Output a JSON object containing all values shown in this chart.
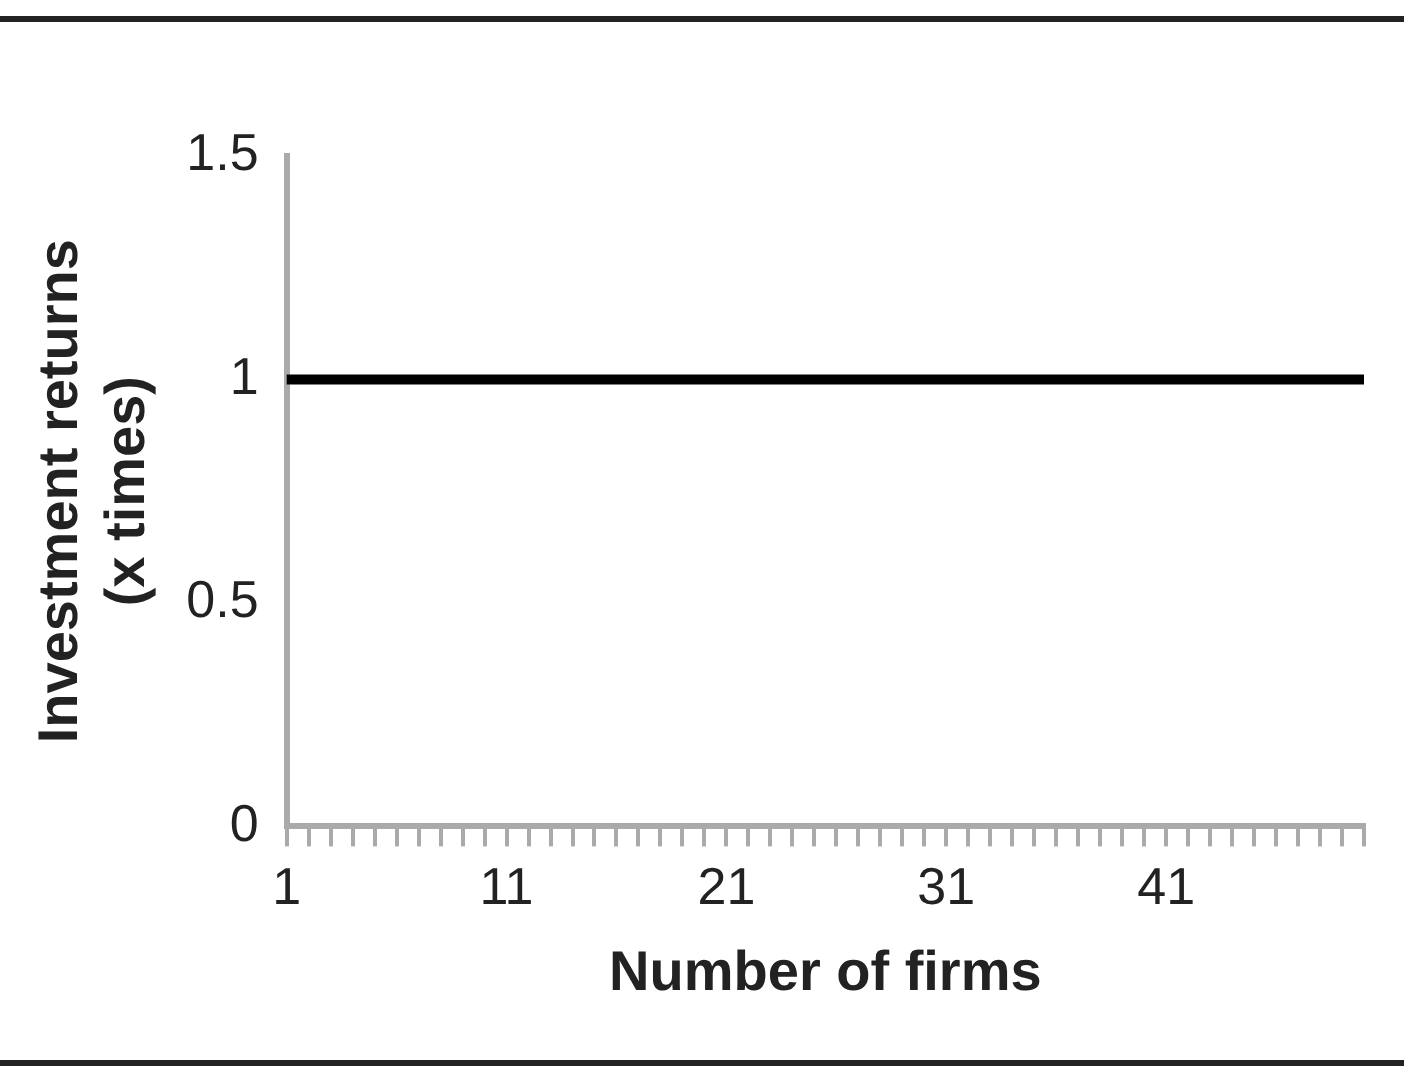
{
  "chart_data": {
    "type": "line",
    "xlabel": "Number of firms",
    "ylabel": "Investment returns (x times)",
    "categories": [
      "1",
      null,
      null,
      null,
      null,
      null,
      null,
      null,
      null,
      null,
      "11",
      null,
      null,
      null,
      null,
      null,
      null,
      null,
      null,
      null,
      "21",
      null,
      null,
      null,
      null,
      null,
      null,
      null,
      null,
      null,
      "31",
      null,
      null,
      null,
      null,
      null,
      null,
      null,
      null,
      null,
      "41",
      null,
      null,
      null,
      null,
      null,
      null,
      null,
      null,
      null
    ],
    "values": [
      1,
      1,
      1,
      1,
      1,
      1,
      1,
      1,
      1,
      1,
      1,
      1,
      1,
      1,
      1,
      1,
      1,
      1,
      1,
      1,
      1,
      1,
      1,
      1,
      1,
      1,
      1,
      1,
      1,
      1,
      1,
      1,
      1,
      1,
      1,
      1,
      1,
      1,
      1,
      1,
      1,
      1,
      1,
      1,
      1,
      1,
      1,
      1,
      1,
      1
    ],
    "color": "#000000",
    "ylim": [
      0,
      1.5
    ],
    "yticks": [
      0,
      0.5,
      1,
      1.5
    ]
  }
}
